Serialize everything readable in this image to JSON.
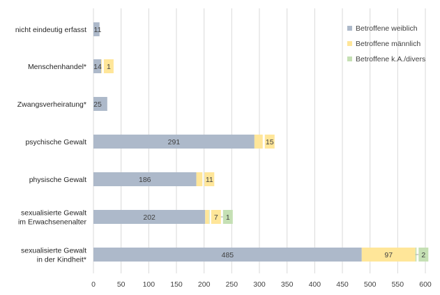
{
  "chart_data": {
    "type": "bar",
    "orientation": "horizontal",
    "stacked": true,
    "categories": [
      "nicht eindeutig erfasst",
      "Menschenhandel*",
      "Zwangsverheiratung*",
      "psychische Gewalt",
      "physische Gewalt",
      "sexualisierte Gewalt im Erwachsenenalter",
      "sexualisierte Gewalt in der Kindheit*"
    ],
    "category_lines": [
      [
        "nicht eindeutig erfasst"
      ],
      [
        "Menschenhandel*"
      ],
      [
        "Zwangsverheiratung*"
      ],
      [
        "psychische Gewalt"
      ],
      [
        "physische Gewalt"
      ],
      [
        "sexualisierte Gewalt",
        "im Erwachsenenalter"
      ],
      [
        "sexualisierte Gewalt",
        "in der Kindheit*"
      ]
    ],
    "series": [
      {
        "name": "Betroffene weiblich",
        "color": "#adb9ca",
        "values": [
          11,
          14,
          25,
          291,
          186,
          202,
          485
        ]
      },
      {
        "name": "Betroffene männlich",
        "color": "#ffe699",
        "values": [
          0,
          1,
          0,
          15,
          11,
          7,
          97
        ]
      },
      {
        "name": "Betroffene k.A./divers",
        "color": "#c5e0b4",
        "values": [
          0,
          0,
          0,
          0,
          0,
          1,
          2
        ]
      }
    ],
    "xlim": [
      0,
      600
    ],
    "xticks": [
      "0",
      "50",
      "100",
      "150",
      "200",
      "250",
      "300",
      "350",
      "400",
      "450",
      "500",
      "550",
      "600"
    ],
    "grid": "vertical",
    "legend_position": "top-right",
    "title": "",
    "xlabel": "",
    "ylabel": ""
  }
}
